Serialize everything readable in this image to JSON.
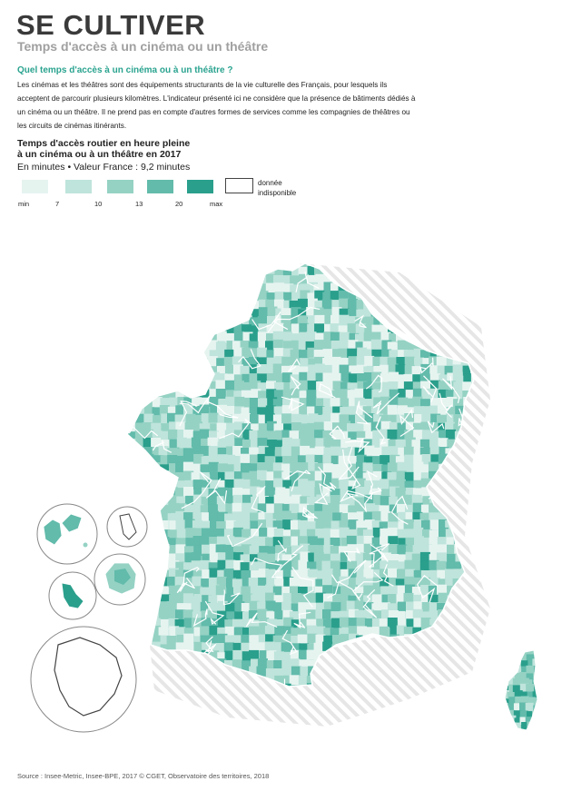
{
  "header": {
    "title": "SE CULTIVER",
    "subtitle": "Temps d'accès à un cinéma ou un théâtre"
  },
  "intro": {
    "question": "Quel temps d'accès à un cinéma ou à un théâtre ?",
    "text": "Les cinémas et les théâtres sont des équipements structurants de la vie culturelle des Français, pour lesquels ils acceptent de parcourir plusieurs kilomètres. L'indicateur présenté ici ne considère que la présence de bâtiments dédiés à un cinéma ou un théâtre. Il ne prend pas en compte d'autres formes de services comme les compagnies de théâtres ou les circuits de cinémas itinérants."
  },
  "legend": {
    "title_line1": "Temps d'accès routier en heure pleine",
    "title_line2": "à un cinéma ou à un théâtre en 2017",
    "subtitle": "En minutes • Valeur France : 9,2 minutes",
    "classes": [
      {
        "color": "#e6f4f0"
      },
      {
        "color": "#bfe4db"
      },
      {
        "color": "#95d2c4"
      },
      {
        "color": "#62bbab"
      },
      {
        "color": "#2a9f8c"
      }
    ],
    "ticks": [
      "min",
      "7",
      "10",
      "13",
      "20",
      "max"
    ],
    "na_line1": "donnée",
    "na_line2": "indisponible",
    "na_color": "#ffffff"
  },
  "map": {
    "regions": [
      "France métropolitaine",
      "Corse",
      "Guadeloupe",
      "Martinique",
      "Mayotte",
      "La Réunion",
      "Guyane"
    ],
    "hatch_color": "#e3e3e3",
    "border_color": "#ffffff"
  },
  "source": "Source : Insee-Metric, Insee-BPE, 2017 © CGET, Observatoire des territoires, 2018"
}
